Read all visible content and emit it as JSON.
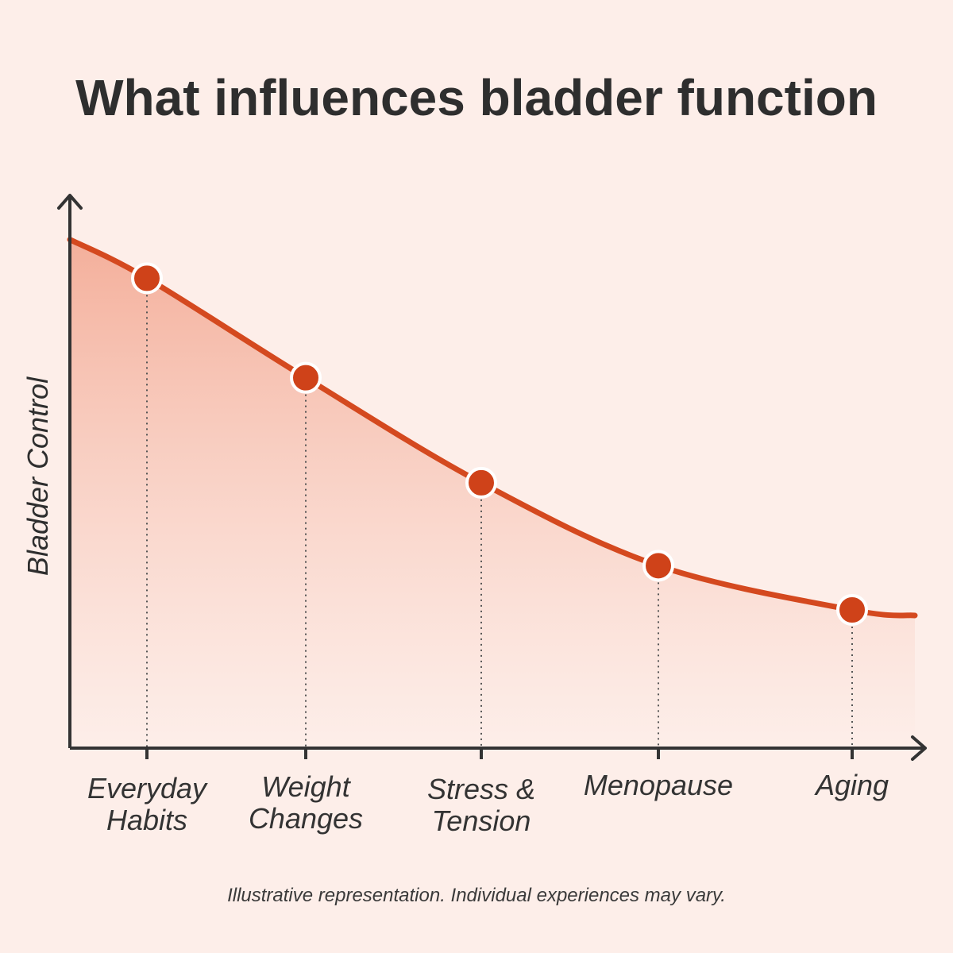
{
  "colors": {
    "background": "#fdeee9",
    "line": "#d4491f",
    "point": "#cf4219",
    "point_outline": "#ffffff",
    "area_top": "#f3a892",
    "axis": "#333333",
    "text": "#2e2e2e"
  },
  "chart_data": {
    "type": "area",
    "title": "What influences bladder function",
    "ylabel": "Bladder Control",
    "xlabel": "",
    "categories": [
      "Everyday\nHabits",
      "Weight\nChanges",
      "Stress &\nTension",
      "Menopause",
      "Aging"
    ],
    "values": [
      85,
      67,
      48,
      33,
      25
    ],
    "start_value": 92,
    "end_value": 24,
    "ylim": [
      0,
      100
    ],
    "grid": false,
    "legend": "none",
    "footnote": "Illustrative representation. Individual experiences may vary."
  }
}
